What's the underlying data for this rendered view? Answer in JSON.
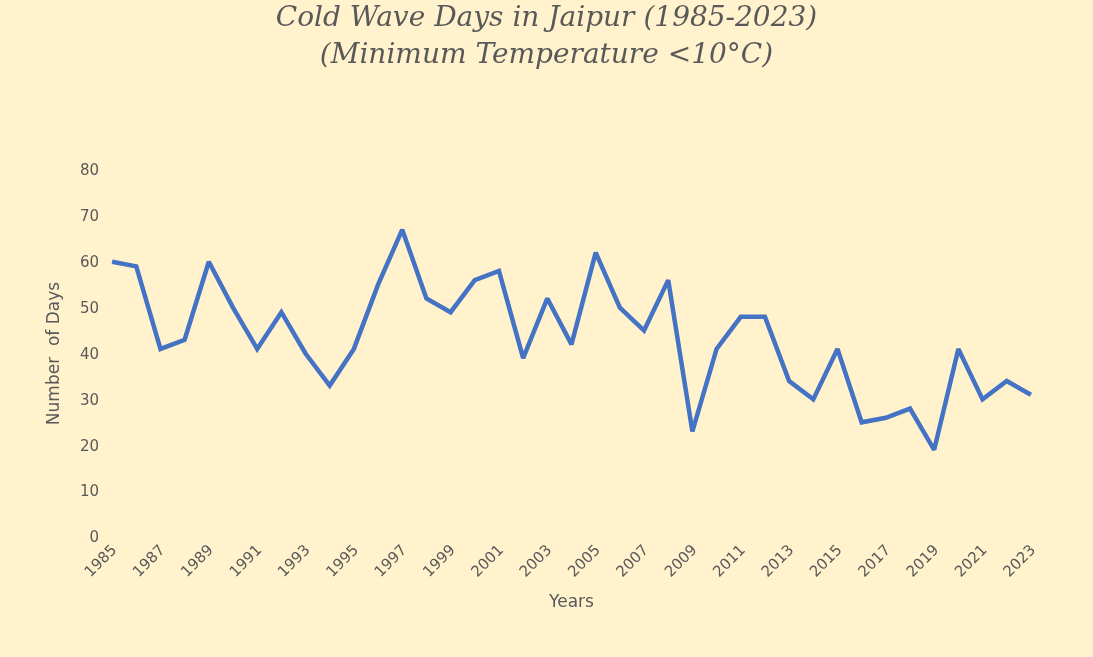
{
  "chart_data": {
    "type": "line",
    "title": "Cold Wave Days in Jaipur (1985-2023)",
    "subtitle": "(Minimum Temperature <10°C)",
    "xlabel": "Years",
    "ylabel": "Number  of Days",
    "categories": [
      "1985",
      null,
      "1987",
      null,
      "1989",
      null,
      "1991",
      null,
      "1993",
      null,
      "1995",
      null,
      "1997",
      null,
      "1999",
      null,
      "2001",
      null,
      "2003",
      null,
      "2005",
      null,
      "2007",
      null,
      "2009",
      null,
      "2011",
      null,
      "2013",
      null,
      "2015",
      null,
      "2017",
      null,
      "2019",
      null,
      "2021",
      null,
      "2023"
    ],
    "series": [
      {
        "color": "#4472c4",
        "values": [
          60,
          59,
          41,
          43,
          60,
          50,
          41,
          49,
          40,
          33,
          41,
          55,
          67,
          52,
          49,
          56,
          58,
          39,
          52,
          42,
          62,
          50,
          45,
          56,
          23,
          41,
          48,
          48,
          34,
          30,
          41,
          25,
          26,
          28,
          19,
          41,
          30,
          34,
          31
        ]
      }
    ],
    "ylim": [
      0,
      80
    ],
    "yticks": [
      0,
      10,
      20,
      30,
      40,
      50,
      60,
      70,
      80
    ],
    "grid": false,
    "marker": "none",
    "line_style": "solid"
  }
}
